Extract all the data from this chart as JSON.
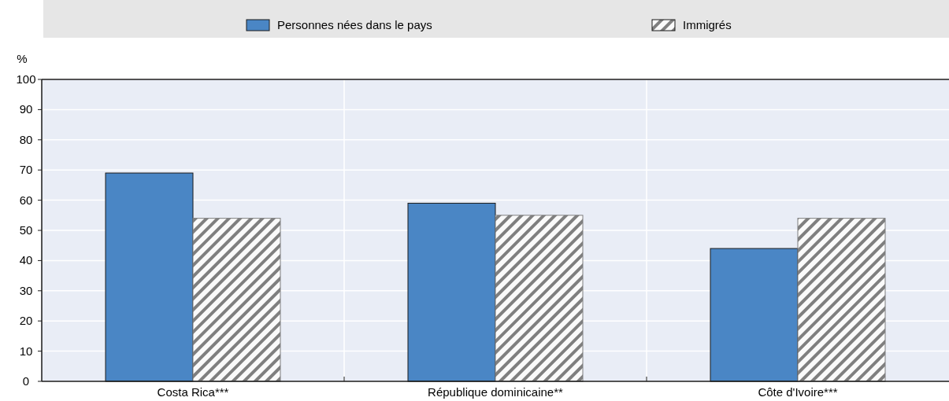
{
  "chart_data": {
    "type": "bar",
    "ylabel": "%",
    "categories": [
      "Costa Rica***",
      "République dominicaine**",
      "Côte d'Ivoire***"
    ],
    "series": [
      {
        "name": "Personnes nées dans le pays",
        "color": "#4a86c5",
        "values": [
          69,
          59,
          44
        ]
      },
      {
        "name": "Immigrés",
        "color": "#7f7f7f",
        "values": [
          54,
          55,
          54
        ],
        "type": "bar"
      }
    ],
    "ylim": [
      0,
      100
    ],
    "yticks": [
      0,
      10,
      20,
      30,
      40,
      50,
      60,
      70,
      80,
      90,
      100
    ],
    "grid": true,
    "legend": "top"
  }
}
